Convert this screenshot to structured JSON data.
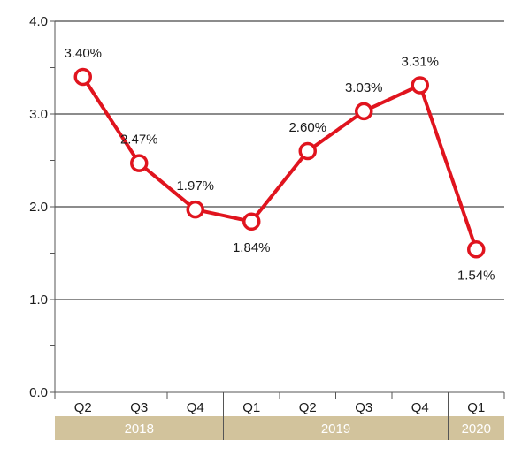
{
  "chart_data": {
    "type": "line",
    "title": "",
    "xlabel": "",
    "ylabel": "",
    "categories": [
      "Q2",
      "Q3",
      "Q4",
      "Q1",
      "Q2",
      "Q3",
      "Q4",
      "Q1"
    ],
    "values": [
      3.4,
      2.47,
      1.97,
      1.84,
      2.6,
      3.03,
      3.31,
      1.54
    ],
    "value_labels": [
      "3.40%",
      "2.47%",
      "1.97%",
      "1.84%",
      "2.60%",
      "3.03%",
      "3.31%",
      "1.54%"
    ],
    "label_position": [
      "above",
      "above",
      "above",
      "below",
      "above",
      "above",
      "above",
      "below"
    ],
    "ylim": [
      0,
      4
    ],
    "y_ticks": [
      0,
      1,
      2,
      3,
      4
    ],
    "y_tick_labels": [
      "0.0",
      "1.0",
      "2.0",
      "3.0",
      "4.0"
    ],
    "year_groups": [
      {
        "label": "2018",
        "count": 3
      },
      {
        "label": "2019",
        "count": 4
      },
      {
        "label": "2020",
        "count": 1
      }
    ],
    "grid": true,
    "colors": {
      "line": "#e0141e",
      "marker_fill": "#ffffff",
      "grid": "#1a1a1a",
      "axis": "#555555",
      "year_band": "#d2c39c",
      "year_text": "#ffffff",
      "text": "#1a1a1a"
    }
  }
}
